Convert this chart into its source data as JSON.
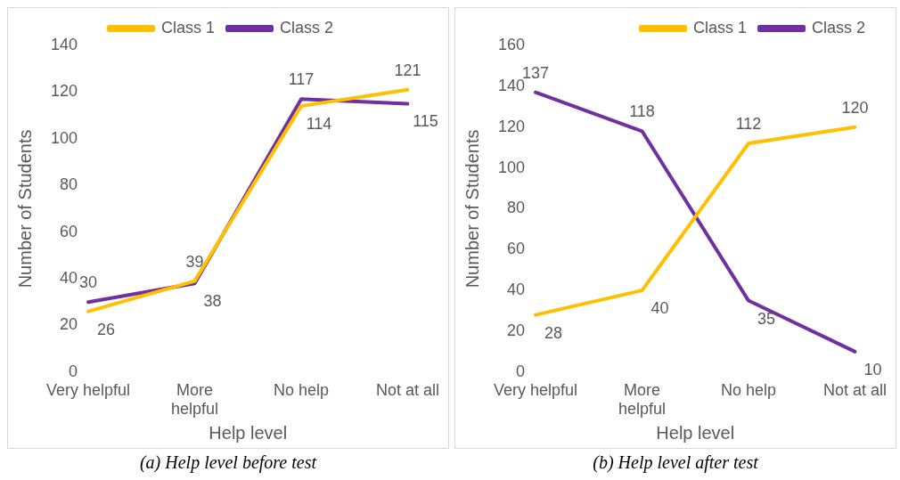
{
  "chart_data": [
    {
      "type": "line",
      "title": "(a) Help level before test",
      "xlabel": "Help level",
      "ylabel": "Number of Students",
      "categories": [
        "Very helpful",
        "More helpful",
        "No help",
        "Not at all"
      ],
      "series": [
        {
          "name": "Class 1",
          "color": "#ffc000",
          "values": [
            26,
            39,
            114,
            121
          ]
        },
        {
          "name": "Class 2",
          "color": "#7030a0",
          "values": [
            30,
            38,
            117,
            115
          ]
        }
      ],
      "ylim": [
        0,
        140
      ],
      "yticks": [
        0,
        20,
        40,
        60,
        80,
        100,
        120,
        140
      ],
      "grid": false,
      "legend": "top",
      "marker": "none",
      "line_style": "solid",
      "data_labels": true
    },
    {
      "type": "line",
      "title": "(b) Help level after test",
      "xlabel": "Help level",
      "ylabel": "Number of Students",
      "categories": [
        "Very helpful",
        "More helpful",
        "No help",
        "Not at all"
      ],
      "series": [
        {
          "name": "Class 1",
          "color": "#ffc000",
          "values": [
            28,
            40,
            112,
            120
          ]
        },
        {
          "name": "Class 2",
          "color": "#7030a0",
          "values": [
            137,
            118,
            35,
            10
          ]
        }
      ],
      "ylim": [
        0,
        160
      ],
      "yticks": [
        0,
        20,
        40,
        60,
        80,
        100,
        120,
        140,
        160
      ],
      "grid": false,
      "legend": "top right",
      "marker": "none",
      "line_style": "solid",
      "data_labels": true
    }
  ]
}
